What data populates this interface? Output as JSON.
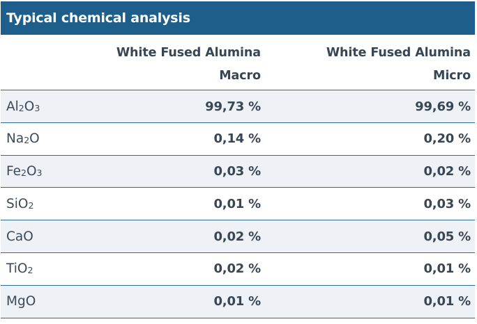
{
  "title": "Typical chemical analysis",
  "header": {
    "col1": {
      "line1": "White Fused Alumina",
      "line2": "Macro"
    },
    "col2": {
      "line1": "White Fused Alumina",
      "line2": "Micro"
    }
  },
  "rows": [
    {
      "element": "Al",
      "sub1": "2",
      "mid": "O",
      "sub2": "3",
      "macro": "99,73 %",
      "micro": "99,69 %"
    },
    {
      "element": "Na",
      "sub1": "2",
      "mid": "O",
      "sub2": "",
      "macro": "0,14 %",
      "micro": "0,20 %"
    },
    {
      "element": "Fe",
      "sub1": "2",
      "mid": "O",
      "sub2": "3",
      "macro": "0,03 %",
      "micro": "0,02 %"
    },
    {
      "element": "SiO",
      "sub1": "2",
      "mid": "",
      "sub2": "",
      "macro": "0,01 %",
      "micro": "0,03 %"
    },
    {
      "element": "CaO",
      "sub1": "",
      "mid": "",
      "sub2": "",
      "macro": "0,02 %",
      "micro": "0,05 %"
    },
    {
      "element": "TiO",
      "sub1": "2",
      "mid": "",
      "sub2": "",
      "macro": "0,02 %",
      "micro": "0,01 %"
    },
    {
      "element": "MgO",
      "sub1": "",
      "mid": "",
      "sub2": "",
      "macro": "0,01 %",
      "micro": "0,01 %"
    }
  ],
  "colors": {
    "title_bg": "#1e5e8a",
    "row_shade": "#eef1f5",
    "rule": "#2b6c99"
  }
}
